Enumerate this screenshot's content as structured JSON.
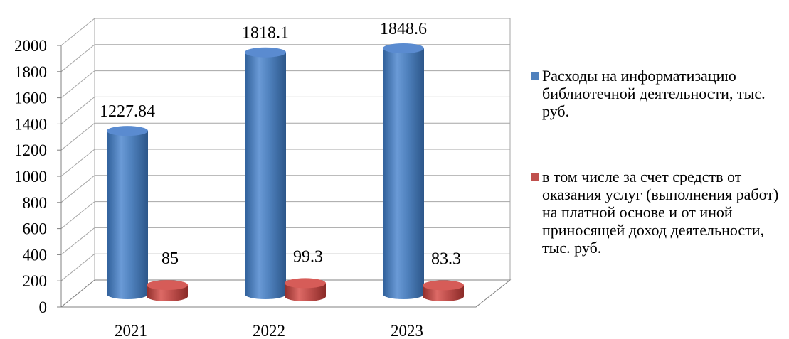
{
  "chart_data": {
    "type": "bar",
    "style": "3d-cylinder",
    "categories": [
      "2021",
      "2022",
      "2023"
    ],
    "series": [
      {
        "name": "Расходы на информатизацию библиотечной деятельности, тыс. руб.",
        "values": [
          1227.84,
          1818.1,
          1848.6
        ],
        "labels": [
          "1227.84",
          "1818.1",
          "1848.6"
        ],
        "color": "#4F81BD"
      },
      {
        "name": "в том числе за счет средств от оказания услуг (выполнения работ) на платной основе и от иной приносящей доход деятельности, тыс. руб.",
        "values": [
          85,
          99.3,
          83.3
        ],
        "labels": [
          "85",
          "99.3",
          "83.3"
        ],
        "color": "#C0504D"
      }
    ],
    "ylim": [
      0,
      2000
    ],
    "yticks": [
      "0",
      "200",
      "400",
      "600",
      "800",
      "1000",
      "1200",
      "1400",
      "1600",
      "1800",
      "2000"
    ],
    "grid": true,
    "legend_position": "right"
  }
}
